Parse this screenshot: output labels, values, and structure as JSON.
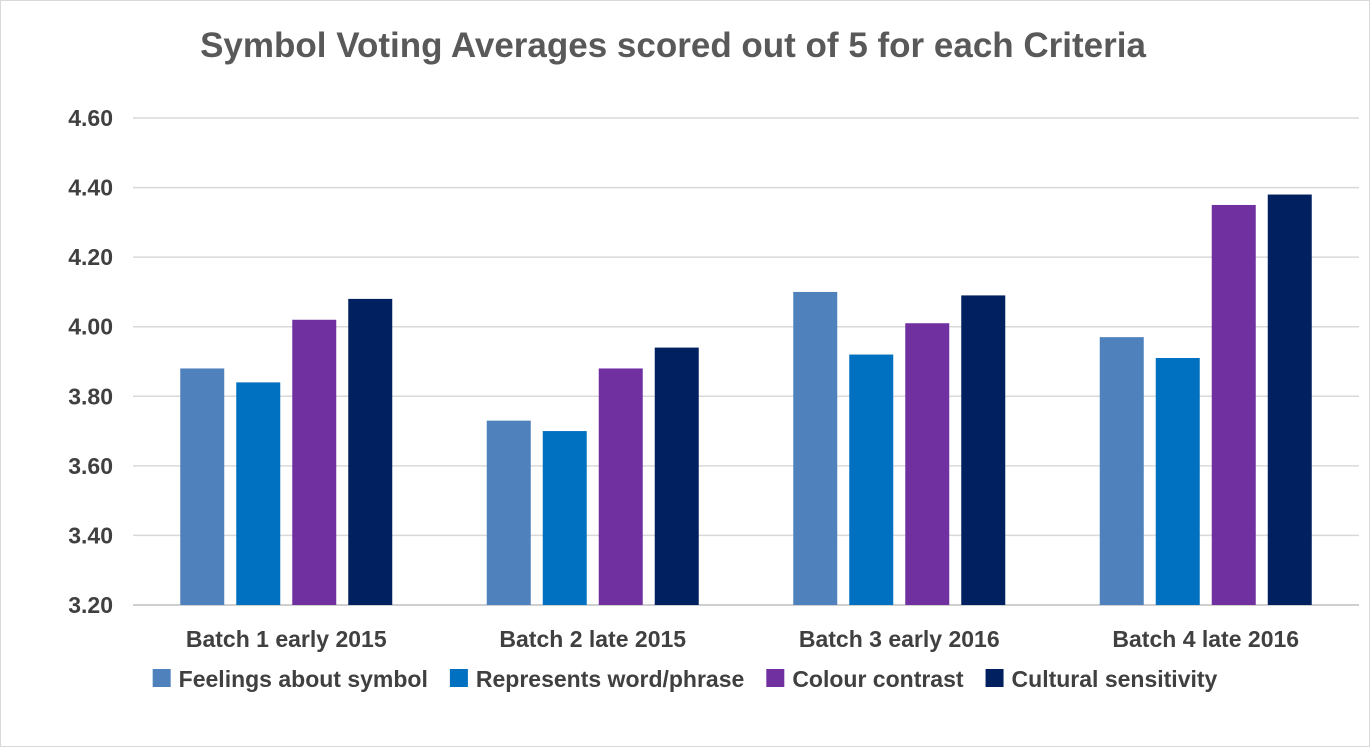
{
  "chart_data": {
    "type": "bar",
    "title": "Symbol Voting Averages scored out of 5 for each Criteria",
    "xlabel": "",
    "ylabel": "",
    "categories": [
      "Batch 1 early 2015",
      "Batch 2 late 2015",
      "Batch 3 early 2016",
      "Batch 4 late 2016"
    ],
    "series": [
      {
        "name": "Feelings about symbol",
        "color": "#4f81bd",
        "values": [
          3.88,
          3.73,
          4.1,
          3.97
        ]
      },
      {
        "name": "Represents word/phrase",
        "color": "#0070c0",
        "values": [
          3.84,
          3.7,
          3.92,
          3.91
        ]
      },
      {
        "name": "Colour contrast",
        "color": "#7030a0",
        "values": [
          4.02,
          3.88,
          4.01,
          4.35
        ]
      },
      {
        "name": "Cultural sensitivity",
        "color": "#002060",
        "values": [
          4.08,
          3.94,
          4.09,
          4.38
        ]
      }
    ],
    "ylim": [
      3.2,
      4.6
    ],
    "yticks": [
      "3.20",
      "3.40",
      "3.60",
      "3.80",
      "4.00",
      "4.20",
      "4.40",
      "4.60"
    ],
    "grid": true,
    "legend_position": "bottom"
  }
}
